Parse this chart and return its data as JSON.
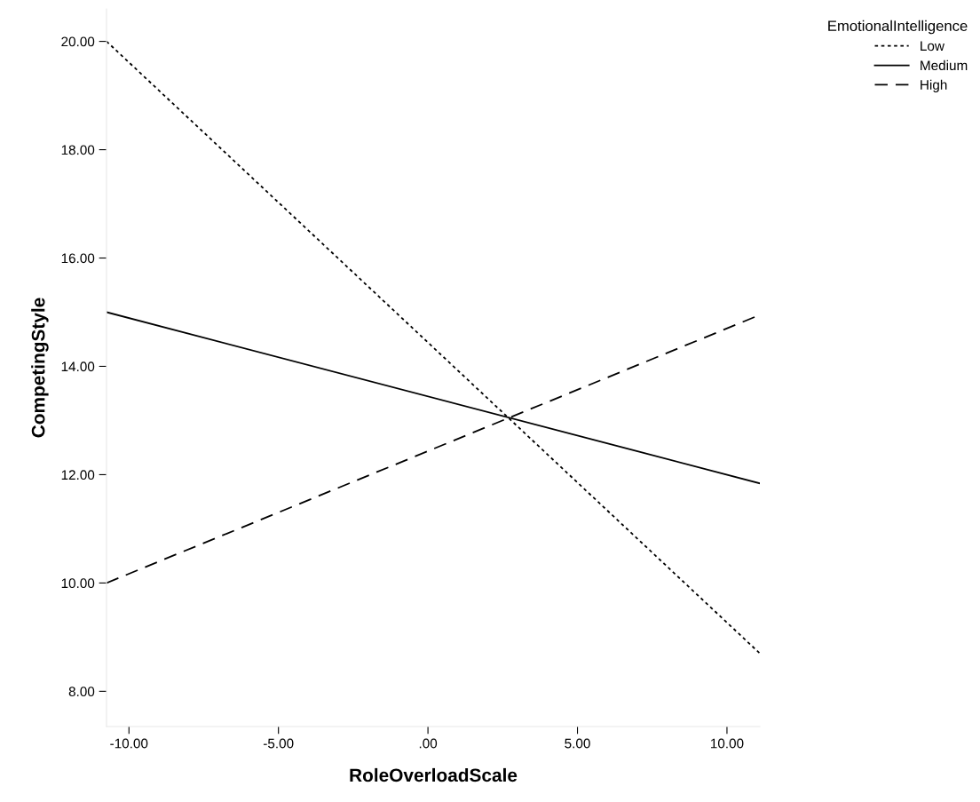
{
  "chart_data": {
    "type": "line",
    "xlabel": "RoleOverloadScale",
    "ylabel": "CompetingStyle",
    "legend_title": "EmotionalIntelligence",
    "x": [
      -10.75,
      11.1
    ],
    "series": [
      {
        "name": "Low",
        "color": "#000000",
        "line_style": "dotted",
        "values": [
          20.0,
          8.7
        ]
      },
      {
        "name": "Medium",
        "color": "#000000",
        "line_style": "solid",
        "values": [
          15.0,
          11.84
        ]
      },
      {
        "name": "High",
        "color": "#000000",
        "line_style": "dashed",
        "values": [
          10.0,
          14.95
        ]
      }
    ],
    "xlim": [
      -10.75,
      11.1
    ],
    "xticks": [
      {
        "value": -10,
        "label": "-10.00"
      },
      {
        "value": -5,
        "label": "-5.00"
      },
      {
        "value": 0,
        "label": ".00"
      },
      {
        "value": 5,
        "label": "5.00"
      },
      {
        "value": 10,
        "label": "10.00"
      }
    ],
    "ylim": [
      7.35,
      20.6
    ],
    "yticks": [
      {
        "value": 8,
        "label": "8.00"
      },
      {
        "value": 10,
        "label": "10.00"
      },
      {
        "value": 12,
        "label": "12.00"
      },
      {
        "value": 14,
        "label": "14.00"
      },
      {
        "value": 16,
        "label": "16.00"
      },
      {
        "value": 18,
        "label": "18.00"
      },
      {
        "value": 20,
        "label": "20.00"
      }
    ],
    "grid": false,
    "legend": "top right",
    "marker": "none"
  }
}
